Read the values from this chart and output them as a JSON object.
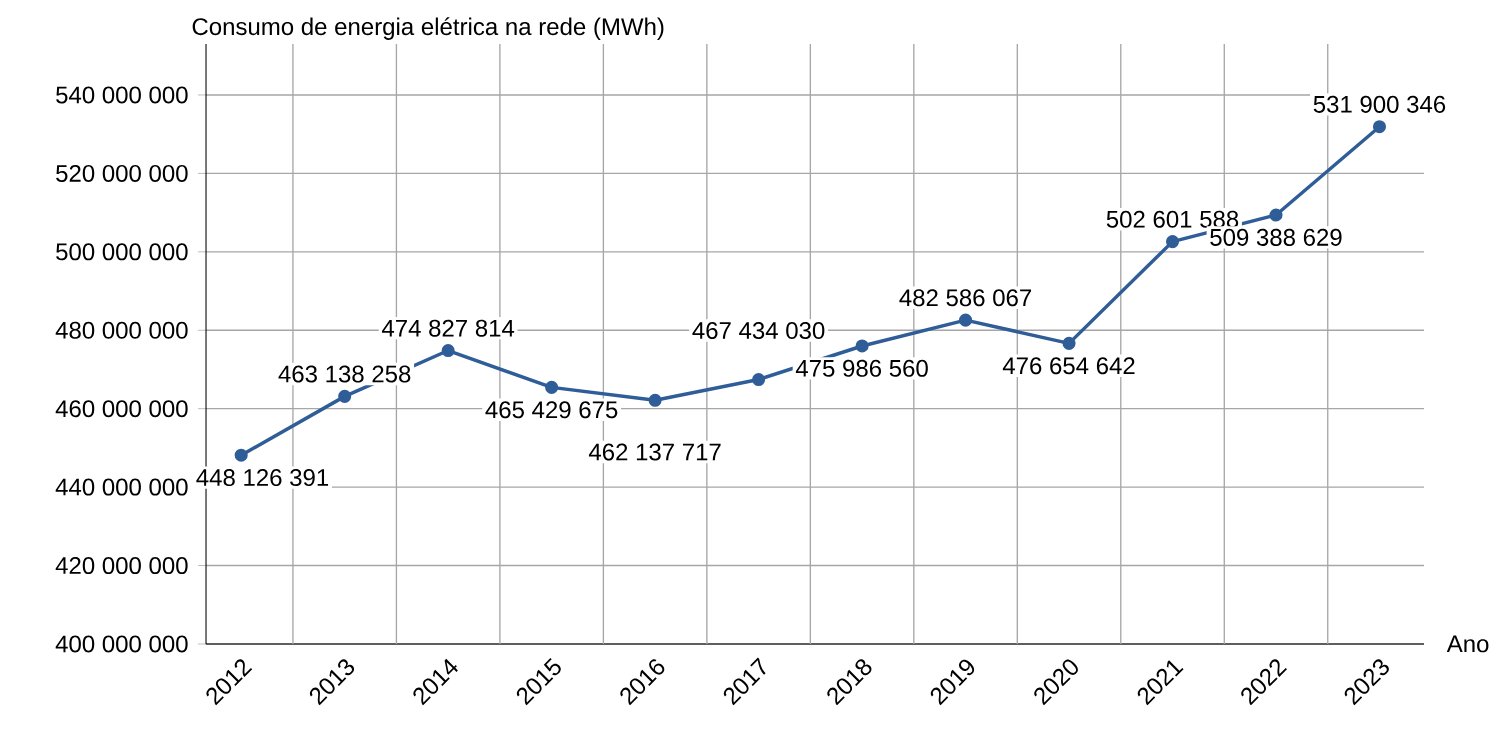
{
  "chart_data": {
    "type": "line",
    "ylabel": "Consumo de energia elétrica na rede (MWh)",
    "xlabel": "Ano",
    "categories": [
      "2012",
      "2013",
      "2014",
      "2015",
      "2016",
      "2017",
      "2018",
      "2019",
      "2020",
      "2021",
      "2022",
      "2023"
    ],
    "values": [
      448126391,
      463138258,
      474827814,
      465429675,
      462137717,
      467434030,
      475986560,
      482586067,
      476654642,
      502601588,
      509388629,
      531900346
    ],
    "value_labels": [
      "448 126 391",
      "463 138 258",
      "474 827 814",
      "465 429 675",
      "462 137 717",
      "467 434 030",
      "475 986 560",
      "482 586 067",
      "476 654 642",
      "502 601 588",
      "509 388 629",
      "531 900 346"
    ],
    "color": "#2f5d98",
    "marker": "circle",
    "line_style": "solid",
    "grid": true,
    "ylim": [
      400000000,
      553000000
    ],
    "yticks": [
      {
        "value": 400000000,
        "label": "400 000 000"
      },
      {
        "value": 420000000,
        "label": "420 000 000"
      },
      {
        "value": 440000000,
        "label": "440 000 000"
      },
      {
        "value": 460000000,
        "label": "460 000 000"
      },
      {
        "value": 480000000,
        "label": "480 000 000"
      },
      {
        "value": 500000000,
        "label": "500 000 000"
      },
      {
        "value": 520000000,
        "label": "520 000 000"
      },
      {
        "value": 540000000,
        "label": "540 000 000"
      }
    ]
  }
}
